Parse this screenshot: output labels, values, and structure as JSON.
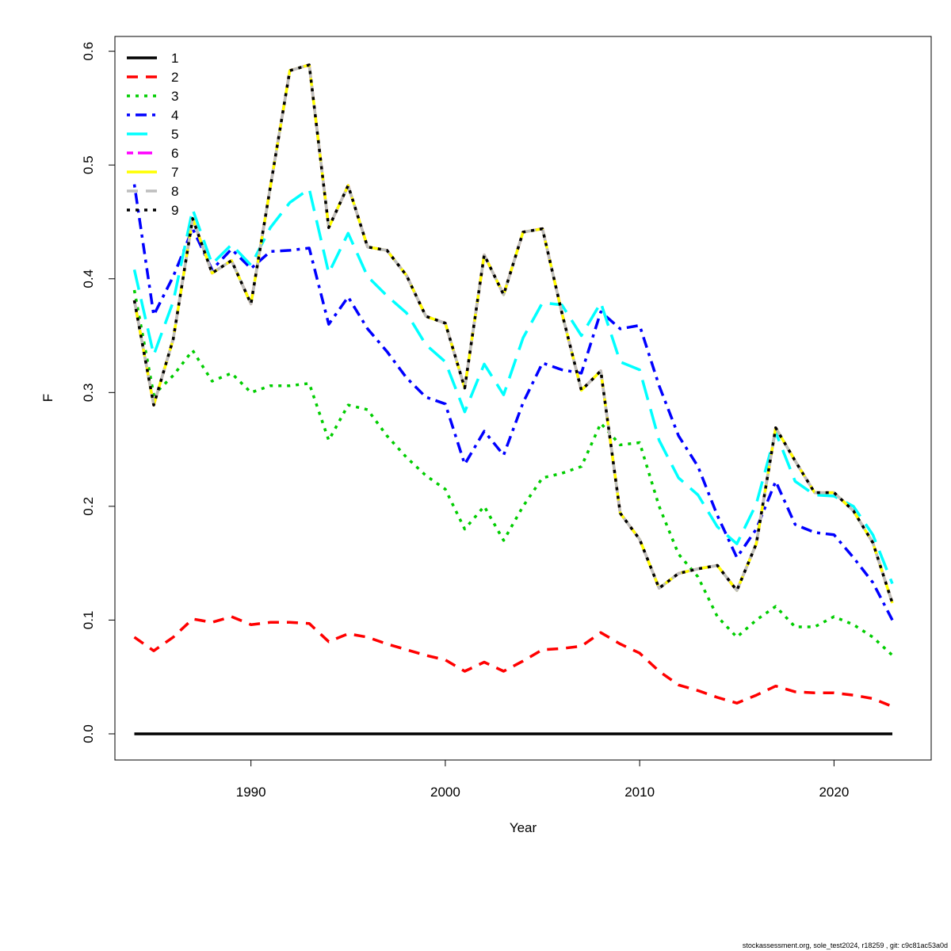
{
  "chart_data": {
    "type": "line",
    "title": "",
    "xlabel": "Year",
    "ylabel": "F",
    "xlim": [
      1983,
      2025
    ],
    "ylim": [
      -0.023,
      0.613
    ],
    "x_ticks": [
      1990,
      2000,
      2010,
      2020
    ],
    "y_ticks": [
      "0.0",
      "0.1",
      "0.2",
      "0.3",
      "0.4",
      "0.5",
      "0.6"
    ],
    "legend_position": "top-left",
    "x": [
      1984,
      1985,
      1986,
      1987,
      1988,
      1989,
      1990,
      1991,
      1992,
      1993,
      1994,
      1995,
      1996,
      1997,
      1998,
      1999,
      2000,
      2001,
      2002,
      2003,
      2004,
      2005,
      2006,
      2007,
      2008,
      2009,
      2010,
      2011,
      2012,
      2013,
      2014,
      2015,
      2016,
      2017,
      2018,
      2019,
      2020,
      2021,
      2022,
      2023
    ],
    "series": [
      {
        "name": "1",
        "color": "#000000",
        "dash": "solid",
        "width": 3.5,
        "values": [
          0,
          0,
          0,
          0,
          0,
          0,
          0,
          0,
          0,
          0,
          0,
          0,
          0,
          0,
          0,
          0,
          0,
          0,
          0,
          0,
          0,
          0,
          0,
          0,
          0,
          0,
          0,
          0,
          0,
          0,
          0,
          0,
          0,
          0,
          0,
          0,
          0,
          0,
          0,
          0
        ]
      },
      {
        "name": "2",
        "color": "#ff0000",
        "dash": "dashed",
        "width": 3.5,
        "values": [
          0.085,
          0.073,
          0.085,
          0.101,
          0.098,
          0.103,
          0.096,
          0.098,
          0.098,
          0.097,
          0.081,
          0.088,
          0.085,
          0.079,
          0.074,
          0.069,
          0.065,
          0.055,
          0.063,
          0.055,
          0.064,
          0.074,
          0.075,
          0.077,
          0.089,
          0.079,
          0.071,
          0.055,
          0.043,
          0.038,
          0.032,
          0.027,
          0.034,
          0.042,
          0.037,
          0.036,
          0.036,
          0.034,
          0.031,
          0.024
        ]
      },
      {
        "name": "3",
        "color": "#00cd00",
        "dash": "dotted",
        "width": 3.5,
        "values": [
          0.39,
          0.298,
          0.315,
          0.337,
          0.31,
          0.317,
          0.3,
          0.306,
          0.306,
          0.308,
          0.258,
          0.289,
          0.285,
          0.262,
          0.243,
          0.227,
          0.215,
          0.18,
          0.2,
          0.17,
          0.2,
          0.225,
          0.229,
          0.235,
          0.273,
          0.254,
          0.256,
          0.2,
          0.158,
          0.138,
          0.103,
          0.085,
          0.1,
          0.112,
          0.094,
          0.094,
          0.103,
          0.096,
          0.085,
          0.069
        ]
      },
      {
        "name": "4",
        "color": "#0000ff",
        "dash": "dashdot",
        "width": 3.5,
        "values": [
          0.483,
          0.368,
          0.402,
          0.444,
          0.408,
          0.426,
          0.409,
          0.424,
          0.425,
          0.427,
          0.36,
          0.384,
          0.356,
          0.336,
          0.313,
          0.296,
          0.29,
          0.237,
          0.266,
          0.245,
          0.291,
          0.326,
          0.32,
          0.317,
          0.371,
          0.356,
          0.359,
          0.306,
          0.262,
          0.235,
          0.192,
          0.155,
          0.18,
          0.222,
          0.184,
          0.177,
          0.175,
          0.155,
          0.133,
          0.1
        ]
      },
      {
        "name": "5",
        "color": "#00ffff",
        "dash": "longdash",
        "width": 3.5,
        "values": [
          0.408,
          0.333,
          0.38,
          0.461,
          0.413,
          0.43,
          0.412,
          0.445,
          0.467,
          0.479,
          0.405,
          0.44,
          0.402,
          0.385,
          0.37,
          0.342,
          0.327,
          0.283,
          0.325,
          0.298,
          0.348,
          0.379,
          0.377,
          0.35,
          0.379,
          0.327,
          0.32,
          0.258,
          0.225,
          0.21,
          0.182,
          0.167,
          0.202,
          0.265,
          0.222,
          0.21,
          0.209,
          0.2,
          0.175,
          0.132
        ]
      },
      {
        "name": "6",
        "color": "#ff00ff",
        "dash": "twodash",
        "width": 3.5,
        "values": [
          0.381,
          0.289,
          0.347,
          0.453,
          0.405,
          0.416,
          0.378,
          0.481,
          0.583,
          0.588,
          0.445,
          0.482,
          0.428,
          0.425,
          0.403,
          0.367,
          0.361,
          0.304,
          0.421,
          0.386,
          0.441,
          0.444,
          0.37,
          0.302,
          0.319,
          0.194,
          0.171,
          0.128,
          0.141,
          0.145,
          0.148,
          0.126,
          0.167,
          0.269,
          0.24,
          0.212,
          0.212,
          0.196,
          0.168,
          0.115
        ]
      },
      {
        "name": "7",
        "color": "#ffff00",
        "dash": "solid",
        "width": 3.5,
        "values": [
          0.381,
          0.289,
          0.347,
          0.453,
          0.405,
          0.416,
          0.378,
          0.481,
          0.583,
          0.588,
          0.445,
          0.482,
          0.428,
          0.425,
          0.403,
          0.367,
          0.361,
          0.304,
          0.421,
          0.386,
          0.441,
          0.444,
          0.37,
          0.302,
          0.319,
          0.194,
          0.171,
          0.128,
          0.141,
          0.145,
          0.148,
          0.126,
          0.167,
          0.269,
          0.24,
          0.212,
          0.212,
          0.196,
          0.168,
          0.115
        ]
      },
      {
        "name": "8",
        "color": "#bebebe",
        "dash": "dashed",
        "width": 3.5,
        "values": [
          0.381,
          0.289,
          0.347,
          0.453,
          0.405,
          0.416,
          0.378,
          0.481,
          0.583,
          0.588,
          0.445,
          0.482,
          0.428,
          0.425,
          0.403,
          0.367,
          0.361,
          0.304,
          0.421,
          0.386,
          0.441,
          0.444,
          0.37,
          0.302,
          0.319,
          0.194,
          0.171,
          0.128,
          0.141,
          0.145,
          0.148,
          0.126,
          0.167,
          0.269,
          0.24,
          0.212,
          0.212,
          0.196,
          0.168,
          0.115
        ]
      },
      {
        "name": "9",
        "color": "#000000",
        "dash": "dotted",
        "width": 3.5,
        "values": [
          0.381,
          0.289,
          0.347,
          0.453,
          0.405,
          0.416,
          0.378,
          0.481,
          0.583,
          0.588,
          0.445,
          0.482,
          0.428,
          0.425,
          0.403,
          0.367,
          0.361,
          0.304,
          0.421,
          0.386,
          0.441,
          0.444,
          0.37,
          0.302,
          0.319,
          0.194,
          0.171,
          0.128,
          0.141,
          0.145,
          0.148,
          0.126,
          0.167,
          0.269,
          0.24,
          0.212,
          0.212,
          0.196,
          0.168,
          0.115
        ]
      }
    ]
  },
  "footer": "stockassessment.org, sole_test2024, r18259 , git: c9c81ac53a0d"
}
